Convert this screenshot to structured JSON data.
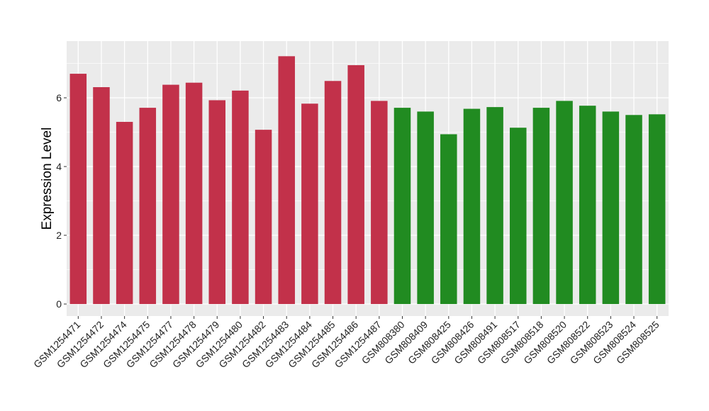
{
  "chart_data": {
    "type": "bar",
    "title": "",
    "xlabel": "",
    "ylabel": "Expression Level",
    "ylim": [
      -0.35,
      7.65
    ],
    "yticks": [
      0,
      2,
      4,
      6
    ],
    "grid": true,
    "colors": {
      "group1": "#c2314a",
      "group2": "#218b21",
      "panel": "#ebebeb",
      "gridline": "#ffffff"
    },
    "categories": [
      "GSM1254471",
      "GSM1254472",
      "GSM1254474",
      "GSM1254475",
      "GSM1254477",
      "GSM1254478",
      "GSM1254479",
      "GSM1254480",
      "GSM1254482",
      "GSM1254483",
      "GSM1254484",
      "GSM1254485",
      "GSM1254486",
      "GSM1254487",
      "GSM808380",
      "GSM808409",
      "GSM808425",
      "GSM808426",
      "GSM808491",
      "GSM808517",
      "GSM808518",
      "GSM808520",
      "GSM808522",
      "GSM808523",
      "GSM808524",
      "GSM808525"
    ],
    "values": [
      6.7,
      6.31,
      5.3,
      5.71,
      6.38,
      6.44,
      5.93,
      6.21,
      5.07,
      7.21,
      5.83,
      6.49,
      6.95,
      5.91,
      5.71,
      5.6,
      4.94,
      5.68,
      5.73,
      5.13,
      5.71,
      5.91,
      5.77,
      5.6,
      5.5,
      5.52
    ],
    "groups": [
      1,
      1,
      1,
      1,
      1,
      1,
      1,
      1,
      1,
      1,
      1,
      1,
      1,
      1,
      2,
      2,
      2,
      2,
      2,
      2,
      2,
      2,
      2,
      2,
      2,
      2
    ]
  }
}
